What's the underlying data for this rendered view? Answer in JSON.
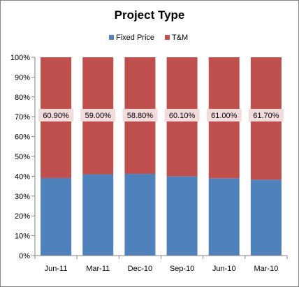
{
  "chart_data": {
    "type": "bar",
    "stacked": "percent",
    "title": "Project Type",
    "categories": [
      "Jun-11",
      "Mar-11",
      "Dec-10",
      "Sep-10",
      "Jun-10",
      "Mar-10"
    ],
    "series": [
      {
        "name": "Fixed Price",
        "color": "#4f81bd",
        "values": [
          39.1,
          41.0,
          41.2,
          39.9,
          39.0,
          38.3
        ]
      },
      {
        "name": "T&M",
        "color": "#c0504d",
        "values": [
          60.9,
          59.0,
          58.8,
          60.1,
          61.0,
          61.7
        ]
      }
    ],
    "data_labels": [
      "60.90%",
      "59.00%",
      "58.80%",
      "60.10%",
      "61.00%",
      "61.70%"
    ],
    "data_label_background": "#f2dcdb",
    "y_ticks": [
      "0%",
      "10%",
      "20%",
      "30%",
      "40%",
      "50%",
      "60%",
      "70%",
      "80%",
      "90%",
      "100%"
    ],
    "ylim": [
      0,
      100
    ],
    "grid": false,
    "legend_position": "top"
  }
}
